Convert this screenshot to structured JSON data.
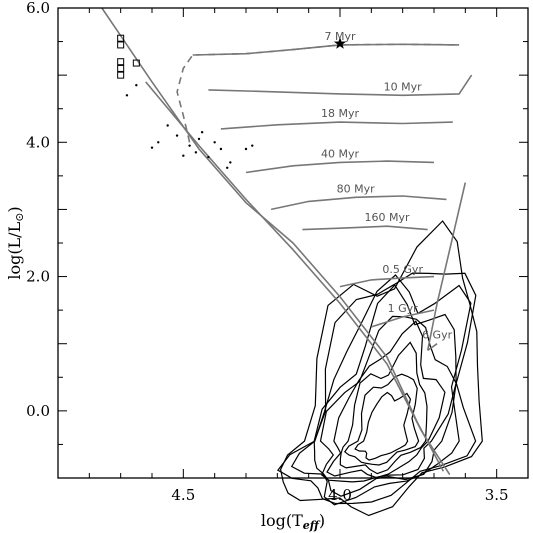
{
  "chart_data": {
    "type": "line",
    "xlabel": "log(T_eff)",
    "ylabel": "log(L/L_⊙)",
    "xlim": [
      4.9,
      3.4
    ],
    "ylim": [
      -1.0,
      6.0
    ],
    "x_axis_reversed": true,
    "x_ticks": [
      {
        "value": 4.5,
        "label": "4.5"
      },
      {
        "value": 4.0,
        "label": "4.0"
      },
      {
        "value": 3.5,
        "label": "3.5"
      }
    ],
    "y_ticks": [
      {
        "value": 0.0,
        "label": "0.0"
      },
      {
        "value": 2.0,
        "label": "2.0"
      },
      {
        "value": 4.0,
        "label": "4.0"
      },
      {
        "value": 6.0,
        "label": "6.0"
      }
    ],
    "grid": false,
    "legend": "none",
    "isochrones": [
      {
        "label": "7 Myr",
        "points": [
          [
            4.47,
            5.3
          ],
          [
            4.3,
            5.32
          ],
          [
            4.15,
            5.38
          ],
          [
            4.0,
            5.45
          ],
          [
            3.8,
            5.46
          ],
          [
            3.62,
            5.45
          ]
        ]
      },
      {
        "label": "10 Myr",
        "points": [
          [
            4.42,
            4.78
          ],
          [
            4.2,
            4.75
          ],
          [
            4.0,
            4.72
          ],
          [
            3.8,
            4.7
          ],
          [
            3.62,
            4.72
          ],
          [
            3.58,
            5.0
          ]
        ]
      },
      {
        "label": "18 Myr",
        "points": [
          [
            4.38,
            4.2
          ],
          [
            4.2,
            4.26
          ],
          [
            4.0,
            4.3
          ],
          [
            3.8,
            4.28
          ],
          [
            3.64,
            4.3
          ]
        ]
      },
      {
        "label": "40 Myr",
        "points": [
          [
            4.3,
            3.55
          ],
          [
            4.15,
            3.65
          ],
          [
            4.0,
            3.7
          ],
          [
            3.85,
            3.72
          ],
          [
            3.7,
            3.7
          ]
        ]
      },
      {
        "label": "80 Myr",
        "points": [
          [
            4.22,
            3.0
          ],
          [
            4.1,
            3.12
          ],
          [
            3.95,
            3.18
          ],
          [
            3.8,
            3.2
          ],
          [
            3.66,
            3.15
          ]
        ]
      },
      {
        "label": "160 Myr",
        "points": [
          [
            4.12,
            2.7
          ],
          [
            4.0,
            2.72
          ],
          [
            3.85,
            2.75
          ],
          [
            3.72,
            2.7
          ]
        ]
      },
      {
        "label": "0.5 Gyr",
        "points": [
          [
            4.0,
            1.85
          ],
          [
            3.9,
            1.95
          ],
          [
            3.8,
            1.98
          ],
          [
            3.7,
            2.0
          ]
        ]
      },
      {
        "label": "1 Gyr",
        "points": [
          [
            3.9,
            1.25
          ],
          [
            3.8,
            1.4
          ],
          [
            3.7,
            1.5
          ]
        ]
      },
      {
        "label": "6 Gyr",
        "points": [
          [
            3.72,
            0.9
          ],
          [
            3.69,
            1.0
          ]
        ]
      }
    ],
    "dashed_track": {
      "points": [
        [
          4.48,
          4.0
        ],
        [
          4.5,
          4.4
        ],
        [
          4.52,
          4.75
        ],
        [
          4.5,
          5.1
        ],
        [
          4.47,
          5.3
        ],
        [
          4.3,
          5.32
        ],
        [
          4.15,
          5.38
        ],
        [
          4.0,
          5.45
        ],
        [
          3.8,
          5.46
        ],
        [
          3.62,
          5.45
        ]
      ]
    },
    "zams_lines": [
      {
        "points": [
          [
            4.76,
            6.0
          ],
          [
            4.6,
            4.9
          ],
          [
            4.45,
            3.9
          ],
          [
            4.3,
            3.1
          ],
          [
            4.15,
            2.5
          ],
          [
            4.0,
            1.7
          ],
          [
            3.85,
            0.8
          ],
          [
            3.75,
            -0.2
          ],
          [
            3.67,
            -0.9
          ]
        ]
      },
      {
        "points": [
          [
            4.62,
            4.9
          ],
          [
            4.45,
            3.95
          ],
          [
            4.3,
            3.15
          ],
          [
            4.15,
            2.4
          ],
          [
            4.0,
            1.6
          ],
          [
            3.85,
            0.7
          ],
          [
            3.74,
            -0.3
          ],
          [
            3.65,
            -0.95
          ]
        ]
      }
    ],
    "giant_branch": {
      "points": [
        [
          3.72,
          0.9
        ],
        [
          3.69,
          1.6
        ],
        [
          3.65,
          2.4
        ],
        [
          3.6,
          3.4
        ]
      ]
    },
    "star_marker": {
      "x": 4.0,
      "y": 5.47
    },
    "square_markers": [
      [
        4.7,
        5.55
      ],
      [
        4.7,
        5.45
      ],
      [
        4.7,
        5.2
      ],
      [
        4.7,
        5.1
      ],
      [
        4.7,
        5.0
      ],
      [
        4.65,
        5.18
      ]
    ],
    "dot_markers": [
      [
        4.65,
        4.85
      ],
      [
        4.68,
        4.7
      ],
      [
        4.55,
        4.25
      ],
      [
        4.58,
        4.0
      ],
      [
        4.52,
        4.1
      ],
      [
        4.48,
        3.95
      ],
      [
        4.46,
        3.85
      ],
      [
        4.5,
        3.8
      ],
      [
        4.44,
        4.15
      ],
      [
        4.4,
        4.0
      ],
      [
        4.38,
        3.9
      ],
      [
        4.42,
        3.78
      ],
      [
        4.35,
        3.7
      ],
      [
        4.3,
        3.9
      ],
      [
        4.28,
        3.95
      ],
      [
        4.6,
        3.92
      ],
      [
        4.36,
        3.62
      ],
      [
        4.45,
        4.05
      ]
    ],
    "density_contours": {
      "levels": 9,
      "core_x": 3.86,
      "core_y": -0.45
    }
  }
}
